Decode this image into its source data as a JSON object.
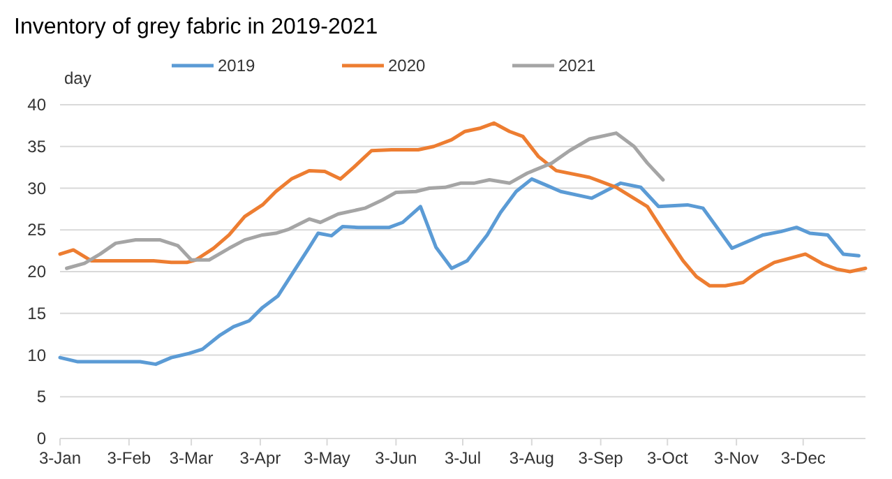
{
  "chart_data": {
    "type": "line",
    "title": "Inventory of grey fabric in 2019-2021",
    "ylabel": "day",
    "legend": "top",
    "grid": "y",
    "marker": "none",
    "line_style": "solid",
    "ylim": [
      0,
      40
    ],
    "yticks": [
      0,
      5,
      10,
      15,
      20,
      25,
      30,
      35,
      40
    ],
    "xlim": [
      "--01-03",
      "--12-31"
    ],
    "xticks": [
      {
        "value": "--01-03",
        "label": "3-Jan"
      },
      {
        "value": "--02-03",
        "label": "3-Feb"
      },
      {
        "value": "--03-03",
        "label": "3-Mar"
      },
      {
        "value": "--04-03",
        "label": "3-Apr"
      },
      {
        "value": "--05-03",
        "label": "3-May"
      },
      {
        "value": "--06-03",
        "label": "3-Jun"
      },
      {
        "value": "--07-03",
        "label": "3-Jul"
      },
      {
        "value": "--08-03",
        "label": "3-Aug"
      },
      {
        "value": "--09-03",
        "label": "3-Sep"
      },
      {
        "value": "--10-03",
        "label": "3-Oct"
      },
      {
        "value": "--11-03",
        "label": "3-Nov"
      },
      {
        "value": "--12-03",
        "label": "3-Dec"
      }
    ],
    "series": [
      {
        "name": "2019",
        "color": "#5b9bd5",
        "x": [
          "--01-03",
          "--01-11",
          "--02-08",
          "--02-15",
          "--02-22",
          "--03-02",
          "--03-08",
          "--03-16",
          "--03-22",
          "--03-29",
          "--04-04",
          "--04-11",
          "--04-17",
          "--04-25",
          "--04-29",
          "--05-05",
          "--05-10",
          "--05-17",
          "--05-24",
          "--05-31",
          "--06-06",
          "--06-14",
          "--06-21",
          "--06-28",
          "--07-05",
          "--07-14",
          "--07-20",
          "--07-27",
          "--08-03",
          "--08-10",
          "--08-16",
          "--08-30",
          "--09-12",
          "--09-21",
          "--09-29",
          "--10-12",
          "--10-19",
          "--11-01",
          "--11-15",
          "--11-23",
          "--11-30",
          "--12-06",
          "--12-14",
          "--12-21",
          "--12-28"
        ],
        "values": [
          9.7,
          9.2,
          9.2,
          8.9,
          9.7,
          10.2,
          10.7,
          12.4,
          13.4,
          14.1,
          15.7,
          17.1,
          19.6,
          22.9,
          24.6,
          24.3,
          25.4,
          25.3,
          25.3,
          25.3,
          25.9,
          27.8,
          22.9,
          20.4,
          21.3,
          24.4,
          27.1,
          29.6,
          31.1,
          30.3,
          29.6,
          28.8,
          30.6,
          30.1,
          27.8,
          28.0,
          27.6,
          22.8,
          24.4,
          24.8,
          25.3,
          24.6,
          24.4,
          22.1,
          21.9
        ]
      },
      {
        "name": "2020",
        "color": "#ed7d31",
        "x": [
          "--01-03",
          "--01-09",
          "--01-17",
          "--01-28",
          "--02-14",
          "--02-22",
          "--03-01",
          "--03-05",
          "--03-13",
          "--03-20",
          "--03-27",
          "--04-04",
          "--04-10",
          "--04-17",
          "--04-25",
          "--05-02",
          "--05-09",
          "--05-15",
          "--05-23",
          "--06-01",
          "--06-13",
          "--06-20",
          "--06-28",
          "--07-04",
          "--07-11",
          "--07-17",
          "--07-24",
          "--07-30",
          "--08-06",
          "--08-14",
          "--08-29",
          "--09-10",
          "--09-24",
          "--10-01",
          "--10-10",
          "--10-16",
          "--10-22",
          "--10-29",
          "--11-06",
          "--11-12",
          "--11-20",
          "--11-27",
          "--12-04",
          "--12-12",
          "--12-18",
          "--12-24",
          "--12-31"
        ],
        "values": [
          22.1,
          22.6,
          21.3,
          21.3,
          21.3,
          21.1,
          21.1,
          21.4,
          22.8,
          24.4,
          26.6,
          28.0,
          29.6,
          31.1,
          32.1,
          32.0,
          31.1,
          32.5,
          34.5,
          34.6,
          34.6,
          35.0,
          35.8,
          36.8,
          37.2,
          37.8,
          36.8,
          36.2,
          33.8,
          32.1,
          31.3,
          30.1,
          27.8,
          24.9,
          21.3,
          19.4,
          18.3,
          18.3,
          18.7,
          19.9,
          21.1,
          21.6,
          22.1,
          20.9,
          20.3,
          20.0,
          20.4
        ]
      },
      {
        "name": "2021",
        "color": "#a5a5a5",
        "x": [
          "--01-06",
          "--01-14",
          "--01-21",
          "--01-28",
          "--02-06",
          "--02-17",
          "--02-25",
          "--03-03",
          "--03-11",
          "--03-20",
          "--03-27",
          "--04-04",
          "--04-10",
          "--04-16",
          "--04-25",
          "--04-30",
          "--05-08",
          "--05-20",
          "--05-28",
          "--06-03",
          "--06-12",
          "--06-18",
          "--06-25",
          "--07-02",
          "--07-08",
          "--07-15",
          "--07-24",
          "--08-01",
          "--08-12",
          "--08-20",
          "--08-29",
          "--09-10",
          "--09-18",
          "--09-24",
          "--10-01"
        ],
        "values": [
          20.4,
          21.0,
          22.1,
          23.4,
          23.8,
          23.8,
          23.1,
          21.4,
          21.4,
          22.8,
          23.8,
          24.4,
          24.6,
          25.1,
          26.3,
          25.9,
          26.9,
          27.6,
          28.6,
          29.5,
          29.6,
          30.0,
          30.1,
          30.6,
          30.6,
          31.0,
          30.6,
          31.8,
          33.0,
          34.5,
          35.9,
          36.6,
          35.0,
          33.0,
          31.0
        ]
      }
    ]
  }
}
